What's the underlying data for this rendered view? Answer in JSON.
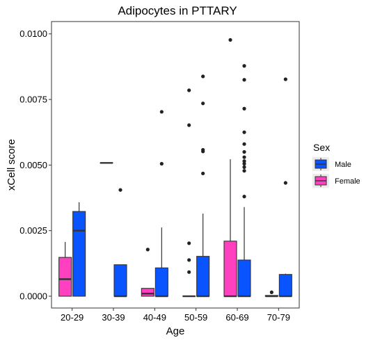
{
  "chart_data": {
    "type": "boxplot",
    "title": "Adipocytes in PTTARY",
    "xlabel": "Age",
    "ylabel": "xCell score",
    "categories": [
      "20-29",
      "30-39",
      "40-49",
      "50-59",
      "60-69",
      "70-79"
    ],
    "ylim": [
      -0.00045,
      0.01047
    ],
    "yticks": [
      0.0,
      0.0025,
      0.005,
      0.0075,
      0.01
    ],
    "ytick_labels": [
      "0.0000",
      "0.0025",
      "0.0050",
      "0.0075",
      "0.0100"
    ],
    "grid": false,
    "legend": {
      "title": "Sex",
      "placement": "right",
      "entries": [
        {
          "label": "Male",
          "color": "#0a54ff"
        },
        {
          "label": "Female",
          "color": "#ff40c0"
        }
      ]
    },
    "series": [
      {
        "name": "Female",
        "color": "#ff40c0",
        "boxes": [
          {
            "category": "20-29",
            "min": 0.0,
            "q1": 0.0,
            "median": 0.00065,
            "q3": 0.00148,
            "max": 0.00207,
            "outliers": []
          },
          {
            "category": "30-39",
            "min": 0.00508,
            "q1": 0.00508,
            "median": 0.00508,
            "q3": 0.00508,
            "max": 0.00508,
            "outliers": []
          },
          {
            "category": "40-49",
            "min": 0.0,
            "q1": 0.0,
            "median": 0.0001,
            "q3": 0.0003,
            "max": 0.0003,
            "outliers": [
              0.00178
            ]
          },
          {
            "category": "50-59",
            "min": 0.0,
            "q1": 0.0,
            "median": 0.0,
            "q3": 0.0,
            "max": 0.0,
            "outliers": [
              0.00092,
              0.00138,
              0.00202,
              0.00652,
              0.00785
            ]
          },
          {
            "category": "60-69",
            "min": 0.0,
            "q1": 0.0,
            "median": 0.0,
            "q3": 0.0021,
            "max": 0.00522,
            "outliers": [
              0.00977
            ]
          },
          {
            "category": "70-79",
            "min": 0.0,
            "q1": 0.0,
            "median": 0.0,
            "q3": 3e-05,
            "max": 3e-05,
            "outliers": [
              0.00015
            ]
          }
        ]
      },
      {
        "name": "Male",
        "color": "#0a54ff",
        "boxes": [
          {
            "category": "20-29",
            "min": 0.0,
            "q1": 0.0,
            "median": 0.0025,
            "q3": 0.00323,
            "max": 0.00358,
            "outliers": []
          },
          {
            "category": "30-39",
            "min": 0.0,
            "q1": 0.0,
            "median": 0.0,
            "q3": 0.0012,
            "max": 0.0012,
            "outliers": [
              0.00405
            ]
          },
          {
            "category": "40-49",
            "min": 0.0,
            "q1": 0.0,
            "median": 0.0,
            "q3": 0.00108,
            "max": 0.00262,
            "outliers": [
              0.00505,
              0.00703
            ]
          },
          {
            "category": "50-59",
            "min": 0.0,
            "q1": 0.0,
            "median": 0.0,
            "q3": 0.00152,
            "max": 0.00315,
            "outliers": [
              0.00468,
              0.00552,
              0.00558,
              0.00735,
              0.00838
            ]
          },
          {
            "category": "60-69",
            "min": 0.0,
            "q1": 0.0,
            "median": 0.0,
            "q3": 0.00138,
            "max": 0.0034,
            "outliers": [
              0.0038,
              0.00478,
              0.00492,
              0.00505,
              0.00515,
              0.0053,
              0.0055,
              0.0058,
              0.00625,
              0.00715,
              0.00825,
              0.00878
            ]
          },
          {
            "category": "70-79",
            "min": 0.0,
            "q1": 0.0,
            "median": 0.0,
            "q3": 0.00083,
            "max": 0.00086,
            "outliers": [
              0.00432,
              0.00827
            ]
          }
        ]
      }
    ]
  }
}
